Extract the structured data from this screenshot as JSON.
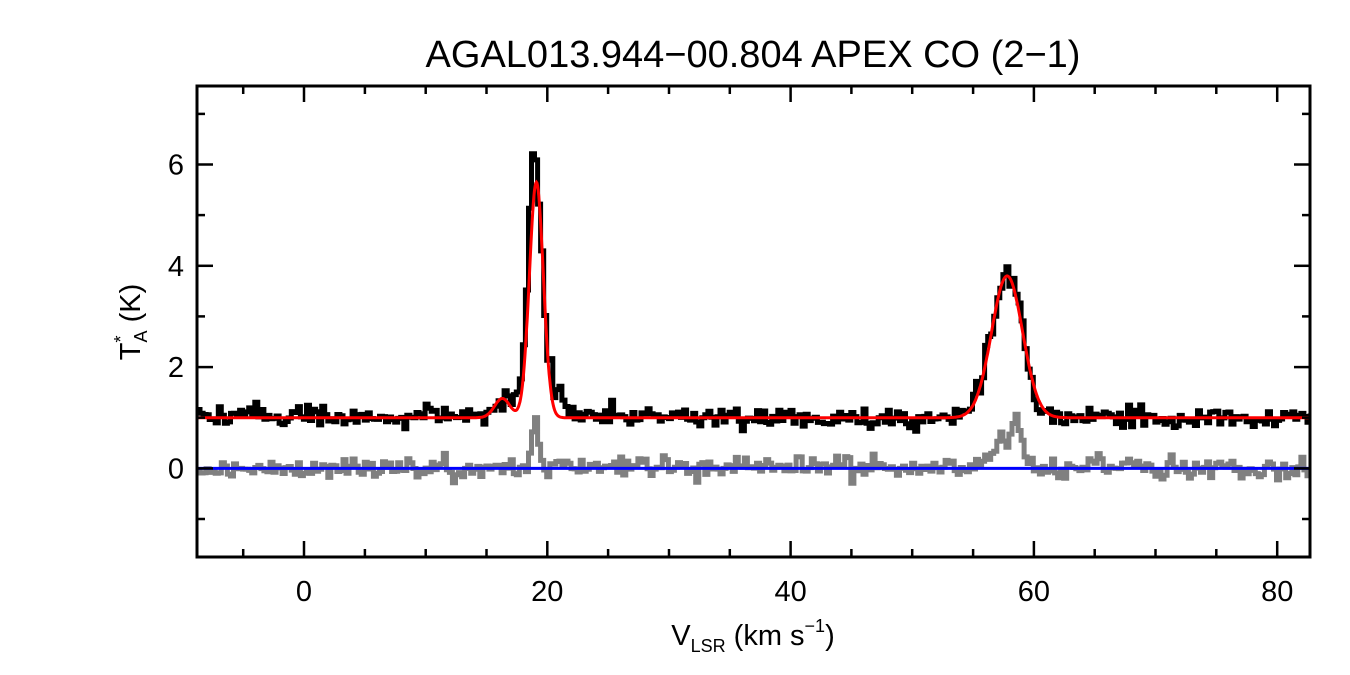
{
  "chart_data": {
    "type": "line",
    "title": "AGAL013.944−00.804  APEX CO (2−1)",
    "xlabel": {
      "main": "V",
      "sub": "LSR",
      "unit_pre": " (km s",
      "sup": "−1",
      "unit_post": ")"
    },
    "ylabel": {
      "main": "T",
      "sup": "*",
      "sub": "A",
      "unit": " (K)"
    },
    "xlim": [
      -8.8,
      82.7
    ],
    "ylim": [
      -1.75,
      7.55
    ],
    "x_ticks": [
      0,
      20,
      40,
      60,
      80
    ],
    "x_tick_labels": [
      "0",
      "20",
      "40",
      "60",
      "80"
    ],
    "y_ticks": [
      0,
      2,
      4,
      6
    ],
    "y_tick_labels": [
      "0",
      "2",
      "4",
      "6"
    ],
    "grid": false,
    "legend": "none",
    "series": [
      {
        "role": "observed spectrum",
        "color": "#000000",
        "style": "histogram",
        "baseline": 1.0,
        "noise_rms": 0.1,
        "points": [
          [
            -8.8,
            1.05
          ],
          [
            10,
            1.0
          ],
          [
            15,
            1.05
          ],
          [
            16.0,
            1.3
          ],
          [
            17.0,
            1.4
          ],
          [
            17.8,
            1.7
          ],
          [
            18.3,
            3.3
          ],
          [
            18.7,
            6.2
          ],
          [
            19.1,
            6.0
          ],
          [
            19.5,
            4.7
          ],
          [
            20.0,
            2.3
          ],
          [
            20.6,
            1.6
          ],
          [
            21.5,
            1.25
          ],
          [
            23,
            1.1
          ],
          [
            30,
            1.0
          ],
          [
            45,
            1.0
          ],
          [
            52,
            1.0
          ],
          [
            54.5,
            1.1
          ],
          [
            55.5,
            1.6
          ],
          [
            56.5,
            2.7
          ],
          [
            57.2,
            3.6
          ],
          [
            57.8,
            3.7
          ],
          [
            58.4,
            3.6
          ],
          [
            59.0,
            3.0
          ],
          [
            59.6,
            1.9
          ],
          [
            60.3,
            1.2
          ],
          [
            61.5,
            1.05
          ],
          [
            70,
            1.0
          ],
          [
            82.7,
            1.0
          ]
        ]
      },
      {
        "role": "fit",
        "color": "#ff0000",
        "style": "line",
        "baseline": 1.0,
        "components": [
          {
            "amp": 0.38,
            "center": 16.3,
            "fwhm": 1.5
          },
          {
            "amp": 4.65,
            "center": 19.1,
            "fwhm": 1.35
          },
          {
            "amp": 2.8,
            "center": 57.8,
            "fwhm": 3.0
          }
        ]
      },
      {
        "role": "residual",
        "color": "#808080",
        "style": "histogram",
        "baseline": 0.0,
        "noise_rms": 0.1,
        "points": [
          [
            -8.8,
            0.0
          ],
          [
            18.2,
            0.0
          ],
          [
            18.6,
            0.3
          ],
          [
            18.9,
            1.1
          ],
          [
            19.3,
            0.6
          ],
          [
            19.8,
            0.05
          ],
          [
            55.5,
            0.0
          ],
          [
            56.3,
            0.2
          ],
          [
            57.3,
            0.6
          ],
          [
            58.3,
            0.8
          ],
          [
            59.0,
            0.6
          ],
          [
            59.6,
            0.15
          ],
          [
            60.3,
            0.0
          ],
          [
            82.7,
            0.0
          ]
        ]
      },
      {
        "role": "zero baseline",
        "color": "#0000ff",
        "style": "line",
        "value": 0.0
      }
    ]
  }
}
